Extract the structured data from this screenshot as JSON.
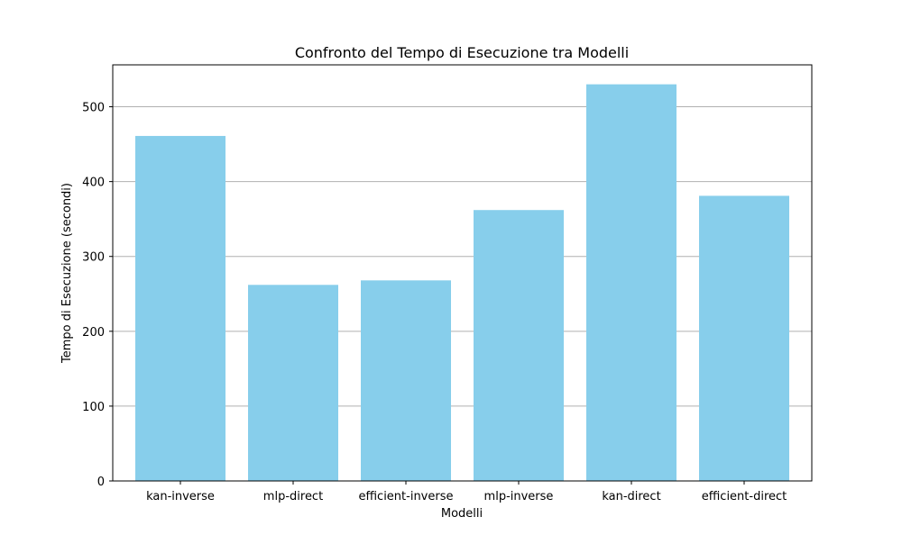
{
  "chart_data": {
    "type": "bar",
    "title": "Confronto del Tempo di Esecuzione tra Modelli",
    "xlabel": "Modelli",
    "ylabel": "Tempo di Esecuzione (secondi)",
    "categories": [
      "kan-inverse",
      "mlp-direct",
      "efficient-inverse",
      "mlp-inverse",
      "kan-direct",
      "efficient-direct"
    ],
    "values": [
      461,
      262,
      268,
      362,
      530,
      381
    ],
    "ylim": [
      0,
      556
    ],
    "yticks": [
      0,
      100,
      200,
      300,
      400,
      500
    ],
    "grid": "horizontal",
    "legend": "none",
    "colors": {
      "bar": "#87ceeb",
      "grid": "#b0b0b0",
      "axes": "#000000"
    }
  }
}
